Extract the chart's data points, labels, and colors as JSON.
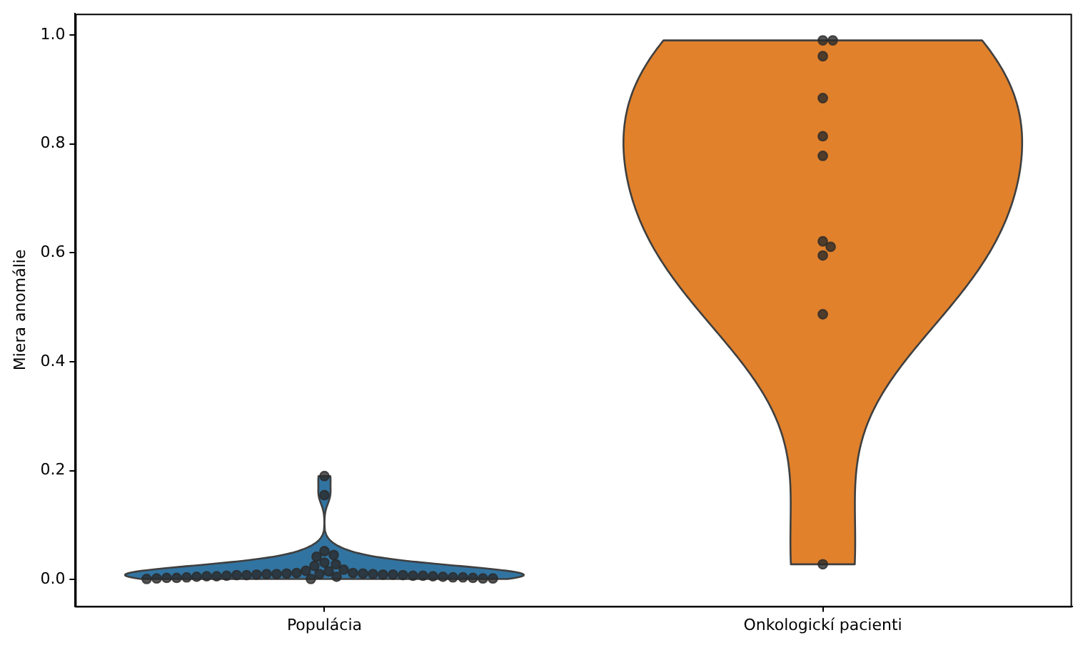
{
  "chart_data": {
    "type": "scatter",
    "ylabel": "Miera anomálie",
    "categories": [
      "Populácia",
      "Onkologickí pacienti"
    ],
    "colors": [
      "#3274a1",
      "#e1812c"
    ],
    "ylim": [
      -0.049,
      1.039
    ],
    "yticks": [
      {
        "value": 0,
        "label": "0.0"
      },
      0.2,
      0.4,
      0.6,
      0.8,
      {
        "value": 1,
        "label": "1.0"
      }
    ],
    "grid": false,
    "legend": false,
    "marker": "circle",
    "series": [
      {
        "color": "#2b2b2b",
        "x": [
          "Populácia",
          "Populácia",
          "Populácia",
          "Populácia",
          "Populácia",
          "Populácia",
          "Populácia",
          "Populácia",
          "Populácia",
          "Populácia",
          "Populácia",
          "Populácia",
          "Populácia",
          "Populácia",
          "Populácia",
          "Populácia",
          "Populácia",
          "Populácia",
          "Populácia",
          "Populácia",
          "Populácia",
          "Populácia",
          "Populácia",
          "Populácia",
          "Populácia",
          "Populácia",
          "Populácia",
          "Populácia",
          "Populácia",
          "Populácia",
          "Populácia",
          "Populácia",
          "Populácia",
          "Populácia",
          "Populácia",
          "Populácia",
          "Populácia",
          "Populácia",
          "Populácia",
          "Populácia",
          "Populácia",
          "Populácia",
          "Populácia",
          "Populácia",
          "Populácia"
        ],
        "values": [
          0.19,
          0.155,
          0.052,
          0.045,
          0.042,
          0.031,
          0.028,
          0.025,
          0.018,
          0.016,
          0.015,
          0.012,
          0.012,
          0.011,
          0.011,
          0.01,
          0.01,
          0.01,
          0.01,
          0.009,
          0.009,
          0.009,
          0.008,
          0.008,
          0.008,
          0.007,
          0.007,
          0.007,
          0.006,
          0.006,
          0.006,
          0.005,
          0.005,
          0.005,
          0.004,
          0.004,
          0.004,
          0.003,
          0.003,
          0.003,
          0.002,
          0.002,
          0.002,
          0.001,
          0.001
        ]
      },
      {
        "color": "#2b2b2b",
        "x": [
          "Onkologickí pacienti",
          "Onkologickí pacienti",
          "Onkologickí pacienti",
          "Onkologickí pacienti",
          "Onkologickí pacienti",
          "Onkologickí pacienti",
          "Onkologickí pacienti",
          "Onkologickí pacienti",
          "Onkologickí pacienti",
          "Onkologickí pacienti",
          "Onkologickí pacienti"
        ],
        "values": [
          0.99,
          0.99,
          0.961,
          0.884,
          0.814,
          0.778,
          0.621,
          0.611,
          0.595,
          0.487,
          0.028
        ]
      }
    ]
  }
}
